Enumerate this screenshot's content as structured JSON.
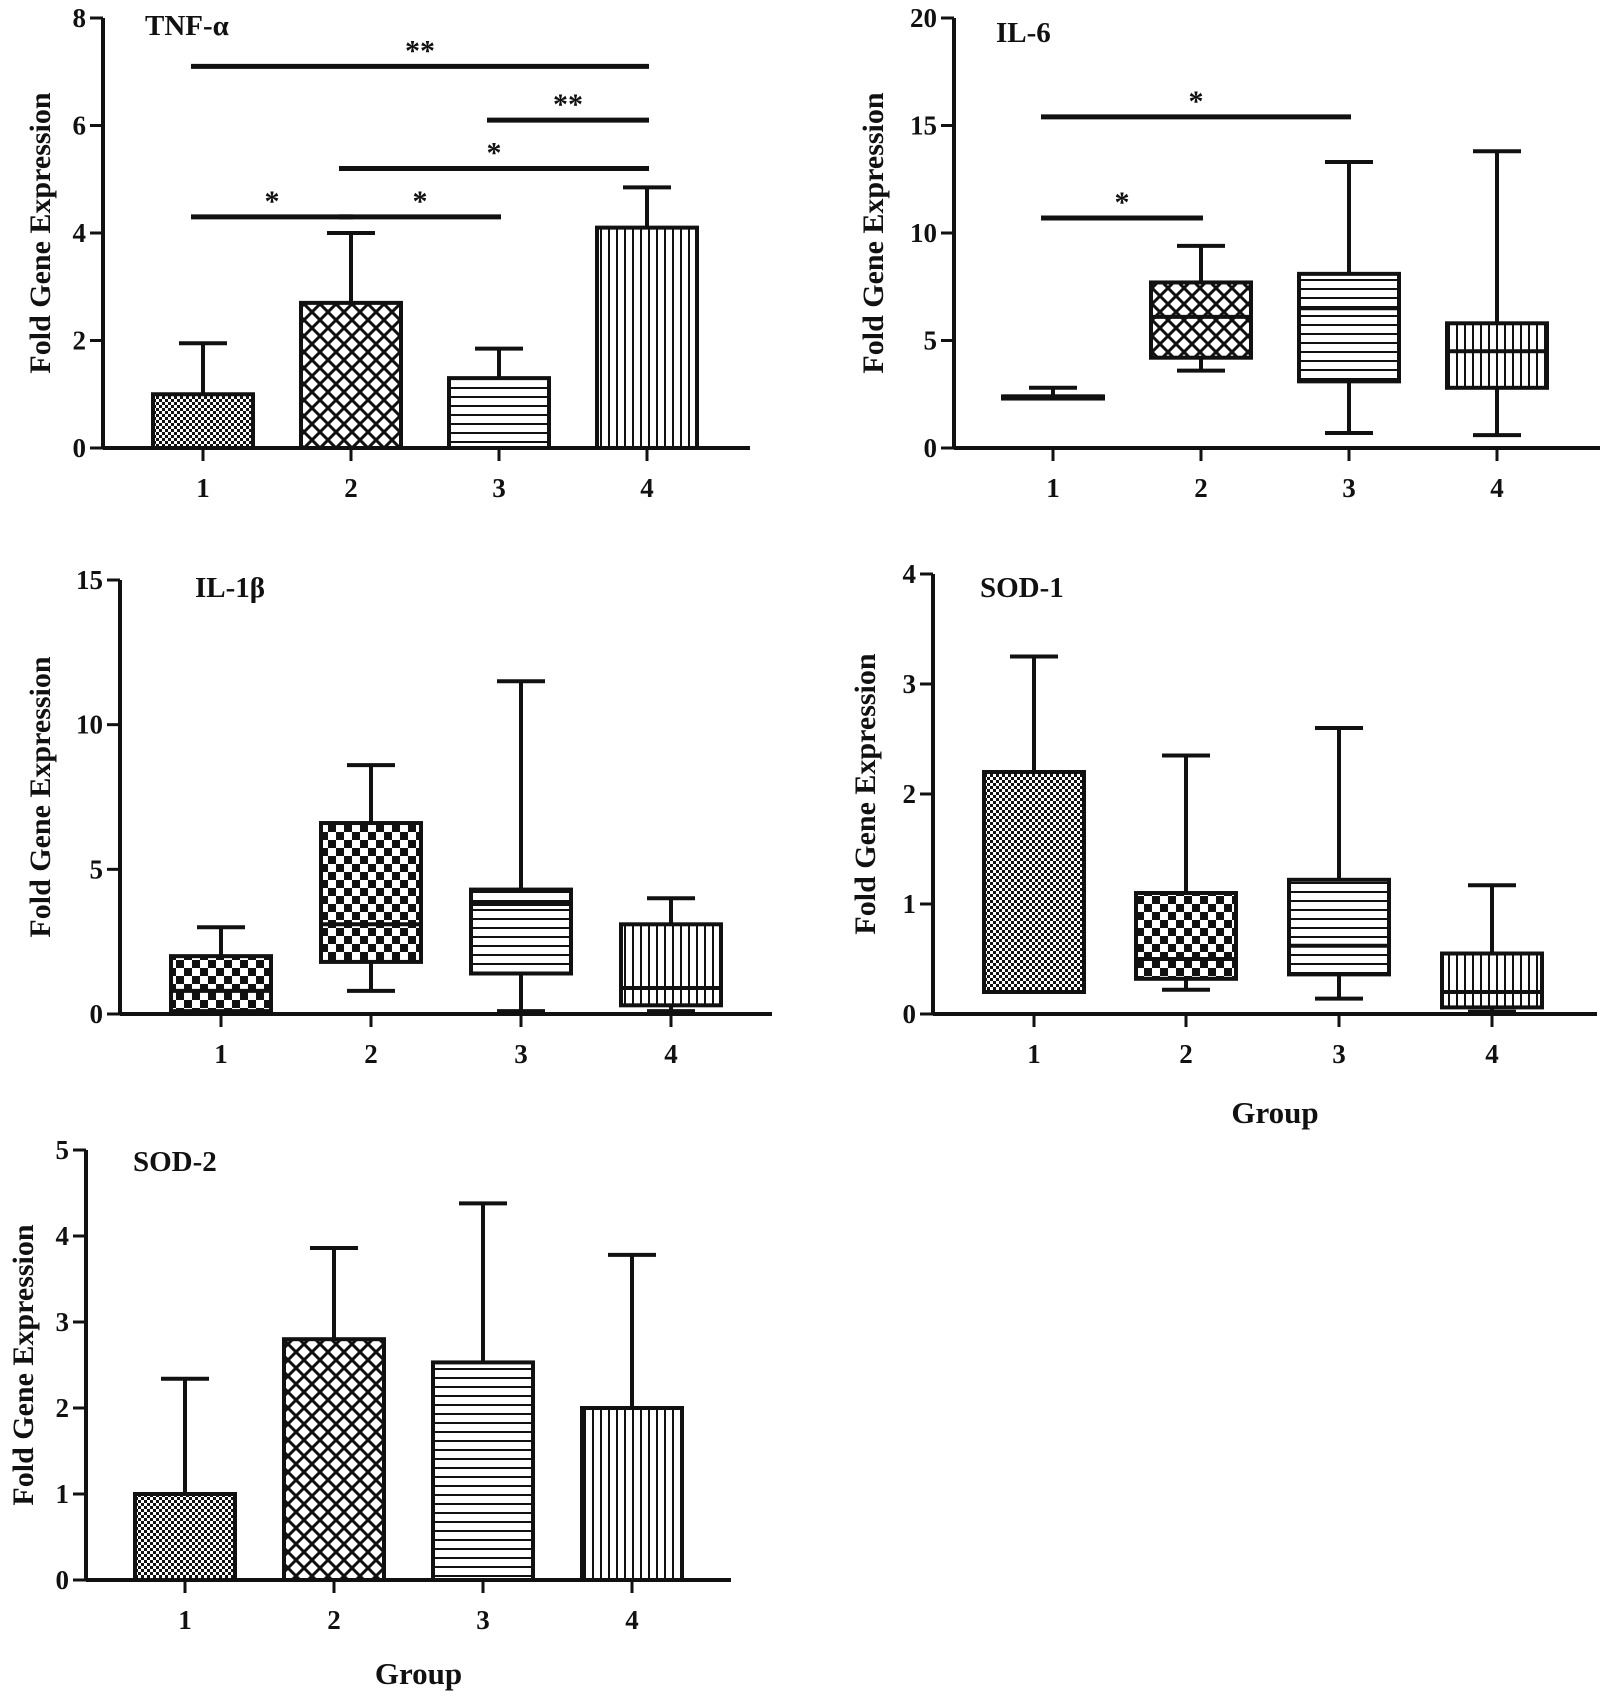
{
  "colors": {
    "ink": "#111111",
    "background": "#ffffff"
  },
  "chart_data": [
    {
      "title": "TNF-α",
      "type": "bar",
      "ylabel": "Fold Gene Expression",
      "xlabel": "",
      "categories": [
        "1",
        "2",
        "3",
        "4"
      ],
      "values": [
        1.0,
        2.7,
        1.3,
        4.1
      ],
      "error_upper": [
        1.95,
        4.0,
        1.85,
        4.85
      ],
      "patterns": [
        "dots",
        "crosshatch",
        "hlines",
        "vlines"
      ],
      "ylim": [
        0,
        8
      ],
      "yticks": [
        "0",
        "2",
        "4",
        "6",
        "8"
      ],
      "significance": [
        {
          "from": "1",
          "to": "2",
          "label": "*",
          "y": 4.3
        },
        {
          "from": "2",
          "to": "3",
          "label": "*",
          "y": 4.3
        },
        {
          "from": "2",
          "to": "4",
          "label": "*",
          "y": 5.2
        },
        {
          "from": "3",
          "to": "4",
          "label": "**",
          "y": 6.1
        },
        {
          "from": "1",
          "to": "4",
          "label": "**",
          "y": 7.1
        }
      ]
    },
    {
      "title": "IL-6",
      "type": "box",
      "ylabel": "Fold Gene Expression",
      "xlabel": "",
      "categories": [
        "1",
        "2",
        "3",
        "4"
      ],
      "boxes": [
        {
          "min": 2.3,
          "q1": 2.3,
          "median": 2.4,
          "q3": 2.4,
          "max": 2.8
        },
        {
          "min": 3.6,
          "q1": 4.2,
          "median": 6.1,
          "q3": 7.7,
          "max": 9.4
        },
        {
          "min": 0.7,
          "q1": 3.1,
          "median": 6.5,
          "q3": 8.1,
          "max": 13.3
        },
        {
          "min": 0.6,
          "q1": 2.8,
          "median": 4.5,
          "q3": 5.8,
          "max": 13.8
        }
      ],
      "patterns": [
        "dots",
        "crosshatch",
        "hlines",
        "vlines"
      ],
      "ylim": [
        0,
        20
      ],
      "yticks": [
        "0",
        "5",
        "10",
        "15",
        "20"
      ],
      "significance": [
        {
          "from": "1",
          "to": "2",
          "label": "*",
          "y": 10.7
        },
        {
          "from": "1",
          "to": "3",
          "label": "*",
          "y": 15.4
        }
      ]
    },
    {
      "title": "IL-1β",
      "type": "box",
      "ylabel": "Fold Gene Expression",
      "xlabel": "",
      "categories": [
        "1",
        "2",
        "3",
        "4"
      ],
      "boxes": [
        {
          "min": 0.1,
          "q1": 0.1,
          "median": 0.8,
          "q3": 2.0,
          "max": 3.0
        },
        {
          "min": 0.8,
          "q1": 1.8,
          "median": 3.1,
          "q3": 6.6,
          "max": 8.6
        },
        {
          "min": 0.1,
          "q1": 1.4,
          "median": 3.8,
          "q3": 4.3,
          "max": 11.5
        },
        {
          "min": 0.1,
          "q1": 0.3,
          "median": 0.9,
          "q3": 3.1,
          "max": 4.0
        }
      ],
      "patterns": [
        "checker",
        "checker",
        "hlines",
        "vlines"
      ],
      "ylim": [
        0,
        15
      ],
      "yticks": [
        "0",
        "5",
        "10",
        "15"
      ],
      "significance": []
    },
    {
      "title": "SOD-1",
      "type": "box",
      "ylabel": "Fold Gene Expression",
      "xlabel": "Group",
      "categories": [
        "1",
        "2",
        "3",
        "4"
      ],
      "boxes": [
        {
          "min": 0.2,
          "q1": 0.2,
          "median": 0.2,
          "q3": 2.2,
          "max": 3.25
        },
        {
          "min": 0.22,
          "q1": 0.32,
          "median": 0.5,
          "q3": 1.1,
          "max": 2.35
        },
        {
          "min": 0.14,
          "q1": 0.36,
          "median": 0.62,
          "q3": 1.22,
          "max": 2.6
        },
        {
          "min": 0.02,
          "q1": 0.06,
          "median": 0.2,
          "q3": 0.55,
          "max": 1.17
        }
      ],
      "patterns": [
        "dots",
        "checker",
        "hlines",
        "vlines"
      ],
      "ylim": [
        0,
        4
      ],
      "yticks": [
        "0",
        "1",
        "2",
        "3",
        "4"
      ],
      "significance": []
    },
    {
      "title": "SOD-2",
      "type": "bar",
      "ylabel": "Fold Gene Expression",
      "xlabel": "Group",
      "categories": [
        "1",
        "2",
        "3",
        "4"
      ],
      "values": [
        1.0,
        2.8,
        2.53,
        2.0
      ],
      "error_upper": [
        2.34,
        3.86,
        4.38,
        3.78
      ],
      "patterns": [
        "dots",
        "crosshatch",
        "hlines",
        "vlines"
      ],
      "ylim": [
        0,
        5
      ],
      "yticks": [
        "0",
        "1",
        "2",
        "3",
        "4",
        "5"
      ],
      "significance": []
    }
  ]
}
